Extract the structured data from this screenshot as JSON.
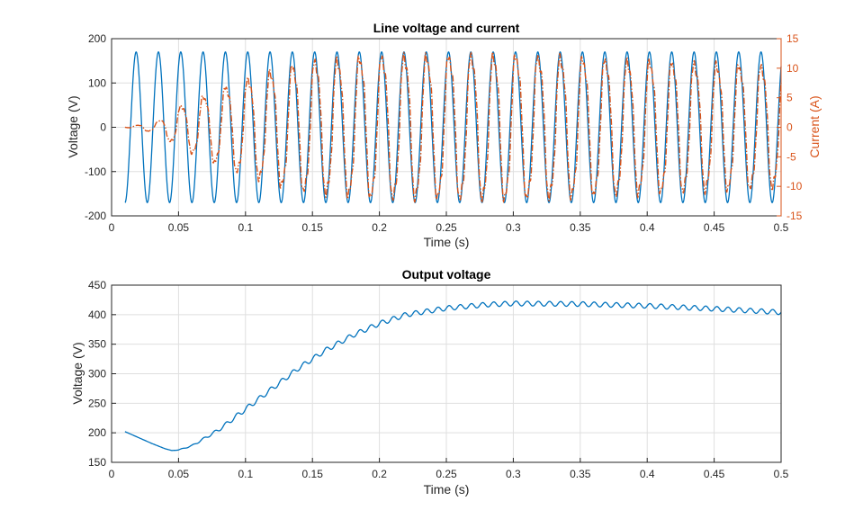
{
  "chart_data": [
    {
      "type": "line",
      "title": "Line voltage and current",
      "xlabel": "Time (s)",
      "ylabel": "Voltage (V)",
      "ylabel_right": "Current (A)",
      "xlim": [
        0,
        0.5
      ],
      "ylim": [
        -200,
        200
      ],
      "ylim_right": [
        -15,
        15
      ],
      "xticks": [
        "0",
        "0.05",
        "0.1",
        "0.15",
        "0.2",
        "0.25",
        "0.3",
        "0.35",
        "0.4",
        "0.45",
        "0.5"
      ],
      "yticks": [
        "-200",
        "-100",
        "0",
        "100",
        "200"
      ],
      "yticks_right": [
        "-15",
        "-10",
        "-5",
        "0",
        "5",
        "10",
        "15"
      ],
      "grid": true,
      "colors": {
        "voltage": "#0072bd",
        "current": "#d95319"
      },
      "voltage": {
        "t_start": 0.01,
        "t_end": 0.5,
        "amplitude": 170,
        "frequency_hz": 60
      },
      "current": {
        "t_start": 0.01,
        "t_end": 0.5,
        "frequency_hz": 60,
        "style": "dash-dot",
        "envelope": {
          "t": [
            0.01,
            0.035,
            0.05,
            0.07,
            0.09,
            0.11,
            0.13,
            0.15,
            0.2,
            0.3,
            0.4,
            0.5
          ],
          "amp": [
            0,
            1.0,
            3.5,
            5.5,
            7.5,
            9.0,
            10.5,
            11.5,
            12.3,
            12.5,
            11.5,
            10.5
          ]
        }
      }
    },
    {
      "type": "line",
      "title": "Output voltage",
      "xlabel": "Time (s)",
      "ylabel": "Voltage (V)",
      "xlim": [
        0,
        0.5
      ],
      "ylim": [
        150,
        450
      ],
      "xticks": [
        "0",
        "0.05",
        "0.1",
        "0.15",
        "0.2",
        "0.25",
        "0.3",
        "0.35",
        "0.4",
        "0.45",
        "0.5"
      ],
      "yticks": [
        "150",
        "200",
        "250",
        "300",
        "350",
        "400",
        "450"
      ],
      "grid": true,
      "colors": {
        "voltage": "#0072bd"
      },
      "output": {
        "t": [
          0.01,
          0.03,
          0.04,
          0.045,
          0.05,
          0.06,
          0.08,
          0.1,
          0.12,
          0.14,
          0.16,
          0.18,
          0.2,
          0.22,
          0.25,
          0.28,
          0.3,
          0.35,
          0.4,
          0.45,
          0.5
        ],
        "v": [
          202,
          182,
          173,
          170,
          171,
          178,
          205,
          240,
          275,
          310,
          340,
          365,
          385,
          400,
          411,
          417,
          419,
          418,
          415,
          410,
          404
        ],
        "ripple_hz": 120,
        "ripple_amplitude": 4
      }
    }
  ]
}
